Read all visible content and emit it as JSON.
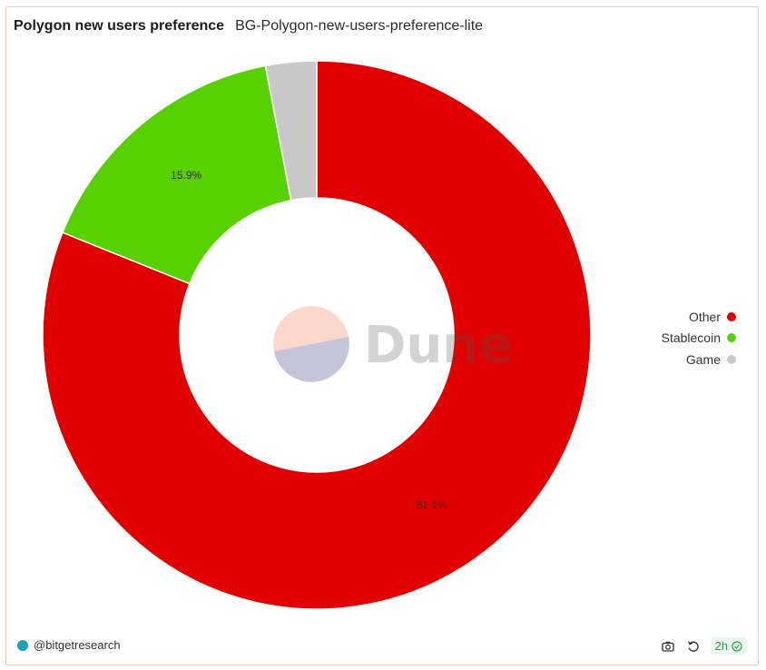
{
  "header": {
    "title": "Polygon new users preference",
    "subtitle": "BG-Polygon-new-users-preference-lite"
  },
  "chart_data": {
    "type": "pie",
    "categories": [
      "Other",
      "Stablecoin",
      "Game"
    ],
    "values": [
      81.1,
      15.9,
      3.0
    ],
    "value_labels": [
      "81.1%",
      "15.9%",
      ""
    ],
    "colors": [
      "#e00000",
      "#58d100",
      "#c8c8c8"
    ],
    "donut": true,
    "legend_position": "right"
  },
  "watermark": {
    "text": "Dune"
  },
  "footer": {
    "author": "@bitgetresearch",
    "refresh_badge": "2h",
    "icons": [
      "camera-icon",
      "refresh-icon",
      "check-circle-icon"
    ]
  }
}
